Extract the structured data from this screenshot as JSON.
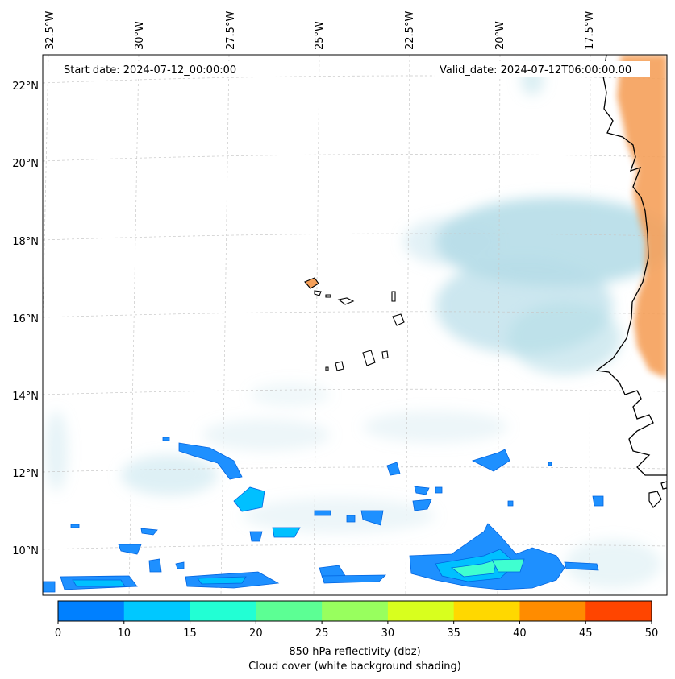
{
  "map": {
    "start_date": "Start date: 2024-07-12_00:00:00",
    "valid_date": "Valid_date: 2024-07-12T06:00:00.00",
    "lon_labels": [
      "32.5°W",
      "30°W",
      "27.5°W",
      "25°W",
      "22.5°W",
      "20°W",
      "17.5°W"
    ],
    "lat_labels": [
      "22°N",
      "20°N",
      "18°N",
      "16°N",
      "14°N",
      "12°N",
      "10°N"
    ]
  },
  "colorbar": {
    "ticks": [
      "0",
      "10",
      "15",
      "20",
      "25",
      "30",
      "35",
      "40",
      "45",
      "50"
    ],
    "colors": [
      "#0080ff",
      "#00c8ff",
      "#22ffd4",
      "#5cff94",
      "#98ff5e",
      "#d8ff1e",
      "#ffd800",
      "#ff8c00",
      "#ff4500"
    ],
    "label_line1": "850 hPa reflectivity (dbz)",
    "label_line2": "Cloud cover (white background shading)"
  },
  "colors": {
    "land_shade": "#f5a05a",
    "cloud_shade": "#b6dde8",
    "refl_low": "#1e90ff",
    "refl_mid": "#00c0ff",
    "refl_high": "#3fffd0"
  }
}
